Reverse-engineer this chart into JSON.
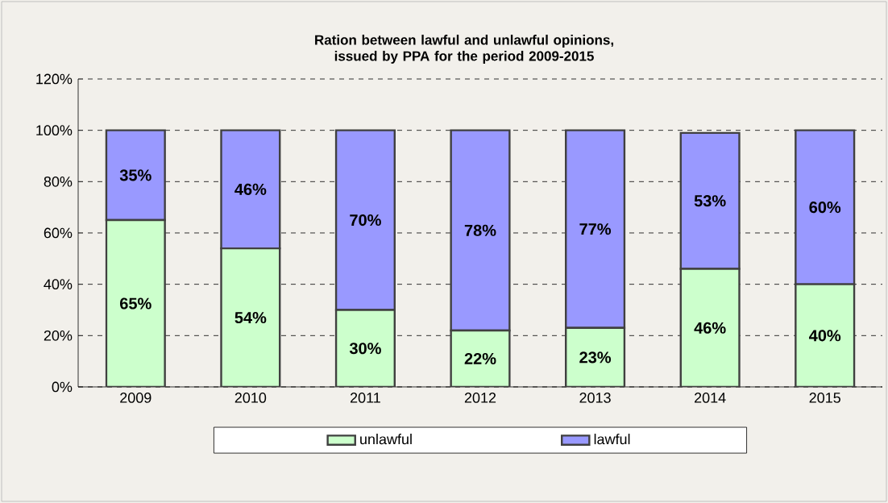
{
  "chart_data": {
    "type": "bar",
    "stacked": true,
    "title": "Ration between lawful and unlawful opinions, issued by PPA for the period 2009-2015",
    "categories": [
      "2009",
      "2010",
      "2011",
      "2012",
      "2013",
      "2014",
      "2015"
    ],
    "series": [
      {
        "name": "unlawful",
        "color": "#ccffcc",
        "values": [
          65,
          54,
          30,
          22,
          23,
          46,
          40
        ],
        "value_labels": [
          "65%",
          "54%",
          "30%",
          "22%",
          "23%",
          "46%",
          "40%"
        ]
      },
      {
        "name": "lawful",
        "color": "#9999ff",
        "values": [
          35,
          46,
          70,
          78,
          77,
          53,
          60
        ],
        "value_labels": [
          "35%",
          "46%",
          "70%",
          "78%",
          "77%",
          "53%",
          "60%"
        ]
      }
    ],
    "ylim": [
      0,
      120
    ],
    "yticks": [
      {
        "value": 0,
        "label": "0%"
      },
      {
        "value": 20,
        "label": "20%"
      },
      {
        "value": 40,
        "label": "40%"
      },
      {
        "value": 60,
        "label": "60%"
      },
      {
        "value": 80,
        "label": "80%"
      },
      {
        "value": 100,
        "label": "100%"
      },
      {
        "value": 120,
        "label": "120%"
      }
    ],
    "grid": "y",
    "line_style": "dashed",
    "legend": "bottom"
  }
}
